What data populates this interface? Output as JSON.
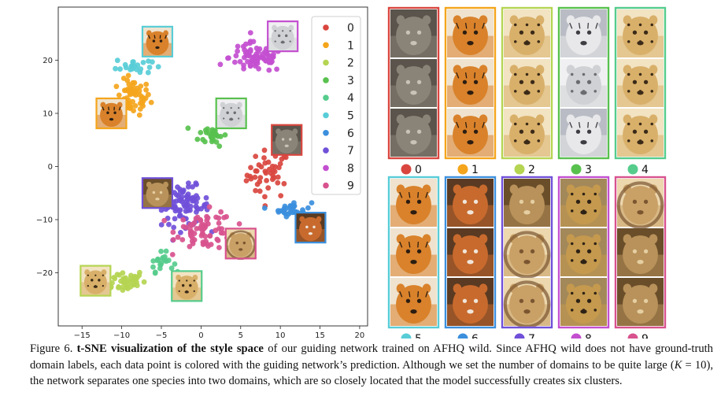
{
  "chart_data": {
    "type": "scatter",
    "xlim": [
      -18,
      21
    ],
    "ylim": [
      -30,
      30
    ],
    "xticks": [
      -15,
      -10,
      -5,
      0,
      5,
      10,
      15,
      20
    ],
    "yticks": [
      20,
      10,
      0,
      -10,
      -20
    ],
    "xtick_labels": [
      "−15",
      "−10",
      "−5",
      "0",
      "5",
      "10",
      "15",
      "20"
    ],
    "ytick_labels": [
      "20",
      "10",
      "0",
      "−10",
      "−20"
    ],
    "legend_position": "top-right",
    "legend": [
      "0",
      "1",
      "2",
      "3",
      "4",
      "5",
      "6",
      "7",
      "8",
      "9"
    ],
    "series": [
      {
        "name": "0",
        "color": "#d9463f",
        "center": [
          8.5,
          -1.5
        ],
        "spread": [
          1.8,
          3.0
        ],
        "count": 45
      },
      {
        "name": "1",
        "color": "#f4a51c",
        "center": [
          -8.5,
          13.0
        ],
        "spread": [
          1.4,
          2.2
        ],
        "count": 55
      },
      {
        "name": "2",
        "color": "#b5d552",
        "center": [
          -10.0,
          -21.5
        ],
        "spread": [
          2.0,
          1.4
        ],
        "count": 50
      },
      {
        "name": "3",
        "color": "#58c14e",
        "center": [
          1.5,
          6.0
        ],
        "spread": [
          1.2,
          1.4
        ],
        "count": 30
      },
      {
        "name": "4",
        "color": "#56cc8c",
        "center": [
          -5.0,
          -18.0
        ],
        "spread": [
          1.0,
          1.2
        ],
        "count": 22
      },
      {
        "name": "5",
        "color": "#58cdd7",
        "center": [
          -8.5,
          19.0
        ],
        "spread": [
          1.5,
          1.1
        ],
        "count": 22
      },
      {
        "name": "6",
        "color": "#3b8fdd",
        "center": [
          11.5,
          -8.0
        ],
        "spread": [
          1.6,
          0.9
        ],
        "count": 30
      },
      {
        "name": "7",
        "color": "#7050d9",
        "center": [
          -2.0,
          -7.5
        ],
        "spread": [
          2.0,
          2.5
        ],
        "count": 85
      },
      {
        "name": "8",
        "color": "#c34fd0",
        "center": [
          7.0,
          20.5
        ],
        "spread": [
          2.3,
          1.9
        ],
        "count": 80
      },
      {
        "name": "9",
        "color": "#d8528e",
        "center": [
          0.5,
          -12.0
        ],
        "spread": [
          2.4,
          2.4
        ],
        "count": 70
      }
    ]
  },
  "gallery": {
    "top_row": [
      {
        "label": "0",
        "color": "#d9463f",
        "images": [
          "wolf",
          "wolf",
          "wolf"
        ]
      },
      {
        "label": "1",
        "color": "#f4a51c",
        "images": [
          "tiger",
          "tiger",
          "tiger"
        ]
      },
      {
        "label": "2",
        "color": "#b5d552",
        "images": [
          "cheetah",
          "cheetah",
          "cheetah"
        ]
      },
      {
        "label": "3",
        "color": "#58c14e",
        "images": [
          "white tiger",
          "snow leopard",
          "white tiger"
        ]
      },
      {
        "label": "4",
        "color": "#56cc8c",
        "images": [
          "cheetah",
          "cheetah",
          "cheetah"
        ]
      }
    ],
    "bottom_row": [
      {
        "label": "5",
        "color": "#58cdd7",
        "images": [
          "tiger",
          "tiger",
          "tiger"
        ]
      },
      {
        "label": "6",
        "color": "#3b8fdd",
        "images": [
          "fox",
          "fox",
          "fox"
        ]
      },
      {
        "label": "7",
        "color": "#7050d9",
        "images": [
          "lioness",
          "lion",
          "lion"
        ]
      },
      {
        "label": "8",
        "color": "#c34fd0",
        "images": [
          "leopard",
          "leopard",
          "leopard"
        ]
      },
      {
        "label": "9",
        "color": "#d8528e",
        "images": [
          "lion",
          "lioness",
          "lioness"
        ]
      }
    ]
  },
  "caption": {
    "prefix": "Figure 6. ",
    "bold": "t-SNE visualization of the style space",
    "part1": " of our guiding network trained on AFHQ wild. Since AFHQ wild does not have ground-truth domain labels, each data point is colored with the guiding network’s prediction. Although we set the number of domains to be quite large (",
    "var": "K",
    "part2": " = 10), the network separates one species into two domains, which are so closely located that the model successfully creates six clusters."
  },
  "animal_palettes": {
    "wolf": [
      "#8a8478",
      "#c9c2b6",
      "#5a544c"
    ],
    "tiger": [
      "#d9822b",
      "#2b1d12",
      "#efe3cf"
    ],
    "cheetah": [
      "#d9b06a",
      "#3a2a18",
      "#f2e3c2"
    ],
    "white tiger": [
      "#e8e8ea",
      "#3d3d42",
      "#b9bcc4"
    ],
    "snow leopard": [
      "#cfd1d4",
      "#6a6c70",
      "#f0f0f2"
    ],
    "fox": [
      "#c86a2e",
      "#f0e6da",
      "#5a3a22"
    ],
    "lioness": [
      "#b8925a",
      "#e5cfa2",
      "#6a4e2a"
    ],
    "lion": [
      "#c9a066",
      "#7a5530",
      "#ecd7ae"
    ],
    "leopard": [
      "#c59a4e",
      "#2e2216",
      "#a3885a"
    ]
  }
}
